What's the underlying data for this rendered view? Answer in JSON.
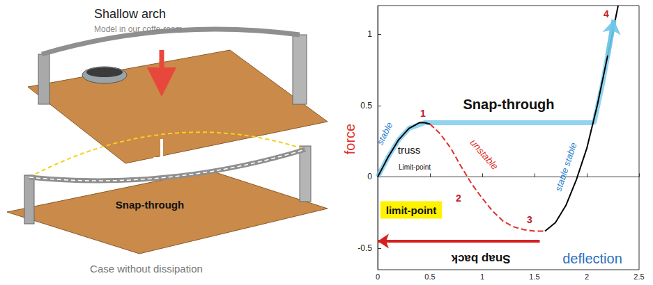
{
  "photo": {
    "title": "Shallow arch",
    "subtitle": "Model in our coffe-room",
    "label": "Snap-through",
    "caption": "Case without dissipation"
  },
  "chart_data": {
    "type": "line",
    "x_label": "deflection",
    "y_label": "force",
    "xlim": [
      0,
      2.5
    ],
    "xticks": [
      0,
      0.5,
      1,
      1.5,
      2,
      2.5
    ],
    "ylim": [
      -0.65,
      1.2
    ],
    "yticks": [
      -0.5,
      0,
      0.5,
      1
    ],
    "grid": false,
    "series": [
      {
        "color": "#000000",
        "line_style": "solid",
        "marker": "none",
        "x": [
          0,
          0.05,
          0.1,
          0.15,
          0.2,
          0.25,
          0.3,
          0.35,
          0.4,
          0.45,
          0.5
        ],
        "values": [
          0,
          0.07,
          0.14,
          0.2,
          0.26,
          0.3,
          0.34,
          0.36,
          0.38,
          0.38,
          0.37
        ]
      },
      {
        "color": "#e0302a",
        "line_style": "dashed",
        "marker": "none",
        "x": [
          0.5,
          0.6,
          0.7,
          0.8,
          0.9,
          1.0,
          1.1,
          1.2,
          1.3,
          1.4,
          1.5,
          1.6
        ],
        "values": [
          0.37,
          0.3,
          0.2,
          0.07,
          -0.05,
          -0.15,
          -0.24,
          -0.31,
          -0.35,
          -0.37,
          -0.38,
          -0.38
        ]
      },
      {
        "color": "#000000",
        "line_style": "solid",
        "marker": "none",
        "x": [
          1.6,
          1.7,
          1.8,
          1.9,
          2.0,
          2.1,
          2.2,
          2.25,
          2.3
        ],
        "values": [
          -0.38,
          -0.32,
          -0.2,
          -0.02,
          0.2,
          0.5,
          0.85,
          1.02,
          1.2
        ]
      },
      {
        "color": "#6ec6ea",
        "line_style": "solid",
        "marker": "arrow",
        "x": [
          0,
          0.1,
          0.2,
          0.3,
          0.45,
          1.0,
          1.5,
          2.07,
          2.15,
          2.2,
          2.26
        ],
        "values": [
          0,
          0.14,
          0.26,
          0.34,
          0.38,
          0.38,
          0.38,
          0.38,
          0.65,
          0.85,
          1.1
        ]
      }
    ],
    "snap_back": {
      "text": "Snap back",
      "x_from": 1.55,
      "x_to": 0,
      "y": -0.45,
      "color": "#d62020"
    },
    "annotations": [
      "stable",
      "truss",
      "Limit-point",
      "1",
      "Snap-through",
      "unstable",
      "2",
      "limit-point",
      "3",
      "stable stable",
      "4"
    ]
  }
}
